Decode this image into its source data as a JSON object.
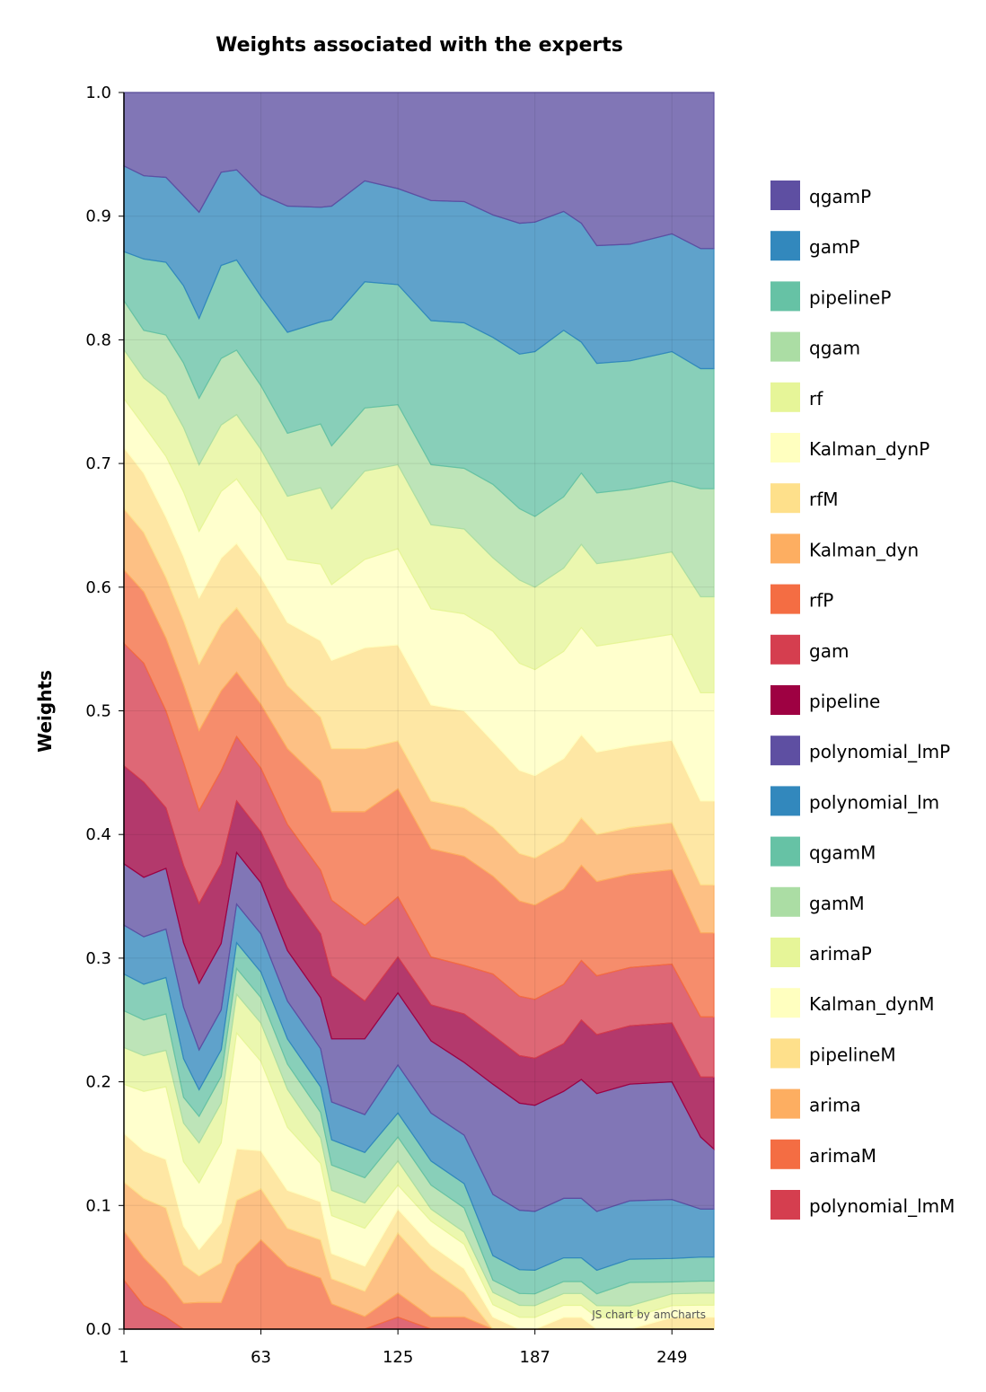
{
  "chart_data": {
    "type": "area",
    "stacked": true,
    "normalized": true,
    "title": "Weights associated with the experts",
    "ylabel": "Weights",
    "xlabel": "",
    "ylim": [
      0,
      1
    ],
    "xlim": [
      1,
      268
    ],
    "yticks": [
      "0.0",
      "0.1",
      "0.2",
      "0.3",
      "0.4",
      "0.5",
      "0.6",
      "0.7",
      "0.8",
      "0.9",
      "1.0"
    ],
    "xticks": [
      "1",
      "63",
      "125",
      "187",
      "249"
    ],
    "grid": true,
    "legend_position": "right",
    "credit": "JS chart by amCharts",
    "x": [
      1,
      10,
      20,
      28,
      35,
      45,
      52,
      63,
      75,
      90,
      95,
      110,
      125,
      140,
      155,
      168,
      180,
      187,
      200,
      208,
      215,
      230,
      249,
      262,
      268
    ],
    "series": [
      {
        "name": "polynomial_lmM",
        "color": "#d53e4f",
        "values": [
          0.04,
          0.02,
          0.01,
          0.0,
          0.0,
          0.0,
          0.0,
          0.0,
          0.0,
          0.0,
          0.0,
          0.0,
          0.01,
          0.0,
          0.0,
          0.0,
          0.0,
          0.0,
          0.0,
          0.0,
          0.0,
          0.0,
          0.0,
          0.0,
          0.0
        ]
      },
      {
        "name": "arimaM",
        "color": "#f46d43",
        "values": [
          0.04,
          0.04,
          0.03,
          0.02,
          0.02,
          0.02,
          0.05,
          0.07,
          0.05,
          0.04,
          0.02,
          0.01,
          0.02,
          0.01,
          0.01,
          0.0,
          0.0,
          0.0,
          0.0,
          0.0,
          0.0,
          0.0,
          0.0,
          0.0,
          0.0
        ]
      },
      {
        "name": "arima",
        "color": "#fdae61",
        "values": [
          0.04,
          0.05,
          0.06,
          0.03,
          0.02,
          0.03,
          0.05,
          0.04,
          0.03,
          0.03,
          0.02,
          0.02,
          0.05,
          0.04,
          0.02,
          0.0,
          0.0,
          0.0,
          0.0,
          0.0,
          0.0,
          0.0,
          0.0,
          0.0,
          0.0
        ]
      },
      {
        "name": "pipelineM",
        "color": "#fee08b",
        "values": [
          0.04,
          0.04,
          0.04,
          0.03,
          0.02,
          0.03,
          0.04,
          0.03,
          0.03,
          0.03,
          0.02,
          0.02,
          0.02,
          0.02,
          0.02,
          0.01,
          0.0,
          0.0,
          0.01,
          0.01,
          0.0,
          0.0,
          0.01,
          0.01,
          0.01
        ]
      },
      {
        "name": "Kalman_dynM",
        "color": "#ffffbf",
        "values": [
          0.04,
          0.05,
          0.06,
          0.05,
          0.05,
          0.06,
          0.09,
          0.07,
          0.05,
          0.03,
          0.03,
          0.03,
          0.02,
          0.02,
          0.02,
          0.01,
          0.01,
          0.01,
          0.01,
          0.01,
          0.01,
          0.01,
          0.01,
          0.01,
          0.01
        ]
      },
      {
        "name": "arimaP",
        "color": "#e6f598",
        "values": [
          0.03,
          0.03,
          0.03,
          0.03,
          0.03,
          0.03,
          0.03,
          0.03,
          0.03,
          0.02,
          0.02,
          0.02,
          0.02,
          0.01,
          0.01,
          0.01,
          0.01,
          0.01,
          0.01,
          0.01,
          0.01,
          0.01,
          0.01,
          0.01,
          0.01
        ]
      },
      {
        "name": "gamM",
        "color": "#abdda4",
        "values": [
          0.03,
          0.03,
          0.03,
          0.02,
          0.02,
          0.02,
          0.02,
          0.02,
          0.02,
          0.02,
          0.02,
          0.02,
          0.02,
          0.02,
          0.02,
          0.01,
          0.01,
          0.01,
          0.01,
          0.01,
          0.01,
          0.02,
          0.01,
          0.01,
          0.01
        ]
      },
      {
        "name": "qgamM",
        "color": "#66c2a5",
        "values": [
          0.03,
          0.03,
          0.03,
          0.03,
          0.02,
          0.02,
          0.02,
          0.02,
          0.02,
          0.02,
          0.02,
          0.02,
          0.02,
          0.02,
          0.02,
          0.02,
          0.02,
          0.02,
          0.02,
          0.02,
          0.02,
          0.02,
          0.02,
          0.02,
          0.02
        ]
      },
      {
        "name": "polynomial_lm",
        "color": "#3288bd",
        "values": [
          0.04,
          0.04,
          0.04,
          0.04,
          0.03,
          0.03,
          0.03,
          0.03,
          0.03,
          0.03,
          0.03,
          0.03,
          0.04,
          0.04,
          0.04,
          0.05,
          0.05,
          0.05,
          0.05,
          0.05,
          0.05,
          0.05,
          0.05,
          0.04,
          0.04
        ]
      },
      {
        "name": "polynomial_lmP",
        "color": "#5e4fa2",
        "values": [
          0.05,
          0.05,
          0.05,
          0.05,
          0.05,
          0.05,
          0.04,
          0.04,
          0.04,
          0.04,
          0.05,
          0.06,
          0.06,
          0.06,
          0.06,
          0.09,
          0.09,
          0.09,
          0.09,
          0.1,
          0.1,
          0.1,
          0.1,
          0.06,
          0.05
        ]
      },
      {
        "name": "pipeline",
        "color": "#9e0142",
        "values": [
          0.08,
          0.08,
          0.05,
          0.06,
          0.06,
          0.06,
          0.04,
          0.04,
          0.05,
          0.05,
          0.05,
          0.03,
          0.03,
          0.03,
          0.04,
          0.04,
          0.04,
          0.04,
          0.04,
          0.05,
          0.05,
          0.05,
          0.05,
          0.05,
          0.06
        ]
      },
      {
        "name": "gam",
        "color": "#d53e4f",
        "values": [
          0.1,
          0.1,
          0.08,
          0.08,
          0.07,
          0.07,
          0.05,
          0.05,
          0.05,
          0.05,
          0.06,
          0.06,
          0.05,
          0.04,
          0.04,
          0.05,
          0.05,
          0.05,
          0.05,
          0.05,
          0.05,
          0.05,
          0.05,
          0.05,
          0.05
        ]
      },
      {
        "name": "rfP",
        "color": "#f46d43",
        "values": [
          0.06,
          0.06,
          0.06,
          0.06,
          0.06,
          0.06,
          0.05,
          0.05,
          0.06,
          0.07,
          0.07,
          0.09,
          0.09,
          0.09,
          0.09,
          0.08,
          0.08,
          0.08,
          0.08,
          0.08,
          0.08,
          0.08,
          0.08,
          0.07,
          0.07
        ]
      },
      {
        "name": "Kalman_dyn",
        "color": "#fdae61",
        "values": [
          0.05,
          0.05,
          0.05,
          0.05,
          0.05,
          0.05,
          0.05,
          0.05,
          0.05,
          0.05,
          0.05,
          0.05,
          0.04,
          0.04,
          0.04,
          0.04,
          0.04,
          0.04,
          0.04,
          0.04,
          0.04,
          0.04,
          0.04,
          0.04,
          0.04
        ]
      },
      {
        "name": "rfM",
        "color": "#fee08b",
        "values": [
          0.05,
          0.05,
          0.05,
          0.05,
          0.05,
          0.05,
          0.05,
          0.05,
          0.05,
          0.06,
          0.07,
          0.08,
          0.08,
          0.08,
          0.08,
          0.07,
          0.07,
          0.07,
          0.07,
          0.07,
          0.07,
          0.07,
          0.07,
          0.07,
          0.07
        ]
      },
      {
        "name": "Kalman_dynP",
        "color": "#ffffbf",
        "values": [
          0.04,
          0.04,
          0.05,
          0.05,
          0.05,
          0.05,
          0.05,
          0.05,
          0.05,
          0.06,
          0.06,
          0.07,
          0.08,
          0.08,
          0.08,
          0.09,
          0.09,
          0.09,
          0.09,
          0.09,
          0.09,
          0.09,
          0.09,
          0.09,
          0.09
        ]
      },
      {
        "name": "rf",
        "color": "#e6f598",
        "values": [
          0.04,
          0.04,
          0.05,
          0.05,
          0.05,
          0.05,
          0.05,
          0.05,
          0.05,
          0.06,
          0.06,
          0.07,
          0.07,
          0.07,
          0.07,
          0.06,
          0.07,
          0.07,
          0.07,
          0.07,
          0.07,
          0.07,
          0.07,
          0.08,
          0.08
        ]
      },
      {
        "name": "qgam",
        "color": "#abdda4",
        "values": [
          0.04,
          0.04,
          0.05,
          0.05,
          0.05,
          0.05,
          0.05,
          0.05,
          0.05,
          0.05,
          0.05,
          0.05,
          0.05,
          0.05,
          0.05,
          0.06,
          0.06,
          0.06,
          0.06,
          0.06,
          0.06,
          0.06,
          0.06,
          0.09,
          0.09
        ]
      },
      {
        "name": "pipelineP",
        "color": "#66c2a5",
        "values": [
          0.04,
          0.06,
          0.06,
          0.06,
          0.06,
          0.07,
          0.07,
          0.07,
          0.08,
          0.08,
          0.1,
          0.1,
          0.1,
          0.12,
          0.12,
          0.12,
          0.13,
          0.14,
          0.14,
          0.11,
          0.11,
          0.11,
          0.11,
          0.1,
          0.1
        ]
      },
      {
        "name": "gamP",
        "color": "#3288bd",
        "values": [
          0.07,
          0.07,
          0.07,
          0.07,
          0.08,
          0.07,
          0.07,
          0.08,
          0.1,
          0.09,
          0.09,
          0.08,
          0.08,
          0.1,
          0.1,
          0.1,
          0.11,
          0.11,
          0.1,
          0.1,
          0.1,
          0.1,
          0.1,
          0.1,
          0.1
        ]
      },
      {
        "name": "qgamP",
        "color": "#5e4fa2",
        "values": [
          0.06,
          0.07,
          0.07,
          0.08,
          0.09,
          0.06,
          0.06,
          0.08,
          0.09,
          0.09,
          0.09,
          0.07,
          0.08,
          0.09,
          0.09,
          0.1,
          0.11,
          0.11,
          0.1,
          0.11,
          0.13,
          0.13,
          0.12,
          0.13,
          0.13
        ]
      }
    ]
  }
}
